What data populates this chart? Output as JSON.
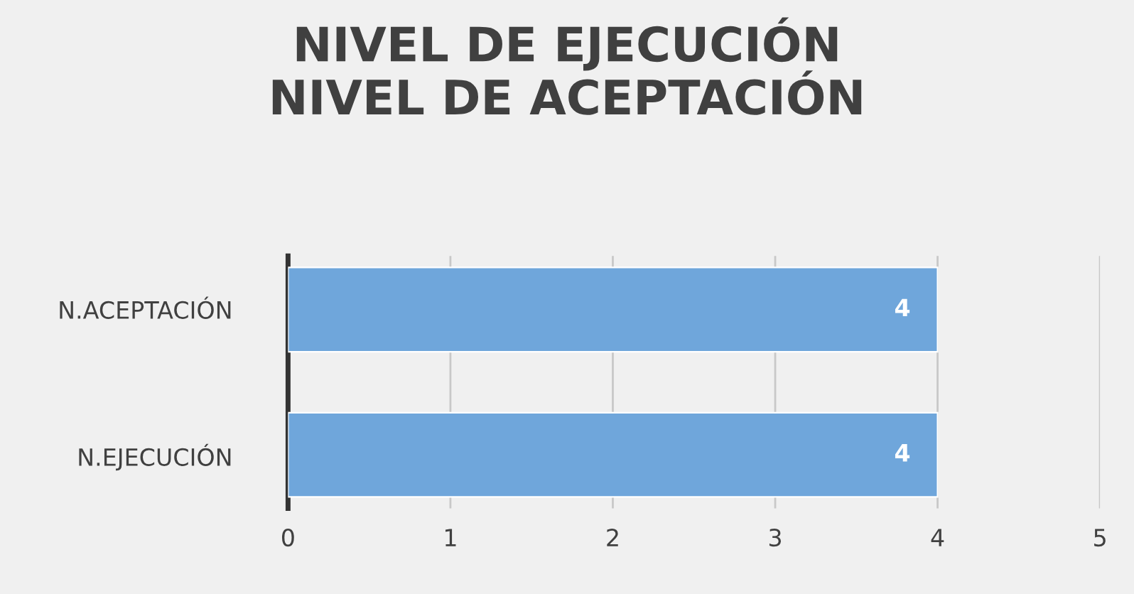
{
  "chart_data": {
    "type": "bar",
    "orientation": "horizontal",
    "title": "NIVEL DE EJECUCIÓN\nNIVEL DE ACEPTACIÓN",
    "categories": [
      "N.ACEPTACIÓN",
      "N.EJECUCIÓN"
    ],
    "values": [
      4,
      4
    ],
    "color": "#6fa6db",
    "xlim": [
      0,
      5
    ],
    "xticks": [
      0,
      1,
      2,
      3,
      4,
      5
    ],
    "grid": "x",
    "data_labels": true
  }
}
